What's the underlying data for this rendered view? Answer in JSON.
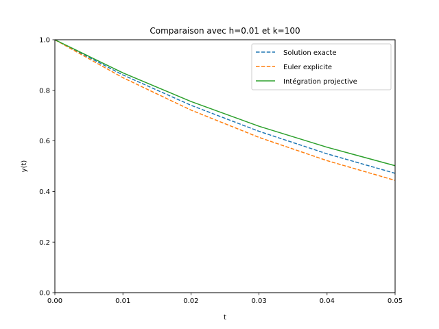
{
  "chart_data": {
    "type": "line",
    "title": "Comparaison avec h=0.01 et k=100",
    "xlabel": "t",
    "ylabel": "y(t)",
    "xlim": [
      0.0,
      0.05
    ],
    "ylim": [
      0.0,
      1.0
    ],
    "xticks": [
      0.0,
      0.01,
      0.02,
      0.03,
      0.04,
      0.05
    ],
    "xtick_labels": [
      "0.00",
      "0.01",
      "0.02",
      "0.03",
      "0.04",
      "0.05"
    ],
    "yticks": [
      0.0,
      0.2,
      0.4,
      0.6,
      0.8,
      1.0
    ],
    "ytick_labels": [
      "0.0",
      "0.2",
      "0.4",
      "0.6",
      "0.8",
      "1.0"
    ],
    "grid": false,
    "legend_position": "top-right",
    "series": [
      {
        "name": "Solution exacte",
        "color": "#1f77b4",
        "style": "dashed",
        "x": [
          0.0,
          0.01,
          0.02,
          0.03,
          0.04,
          0.05
        ],
        "y": [
          1.0,
          0.861,
          0.741,
          0.638,
          0.549,
          0.472
        ]
      },
      {
        "name": "Euler explicite",
        "color": "#ff7f0e",
        "style": "dashed",
        "x": [
          0.0,
          0.01,
          0.02,
          0.03,
          0.04,
          0.05
        ],
        "y": [
          1.0,
          0.85,
          0.722,
          0.614,
          0.522,
          0.444
        ]
      },
      {
        "name": "Intégration projective",
        "color": "#2ca02c",
        "style": "solid",
        "x": [
          0.0,
          0.01,
          0.02,
          0.03,
          0.04,
          0.05
        ],
        "y": [
          1.0,
          0.869,
          0.756,
          0.658,
          0.575,
          0.502
        ]
      }
    ]
  }
}
